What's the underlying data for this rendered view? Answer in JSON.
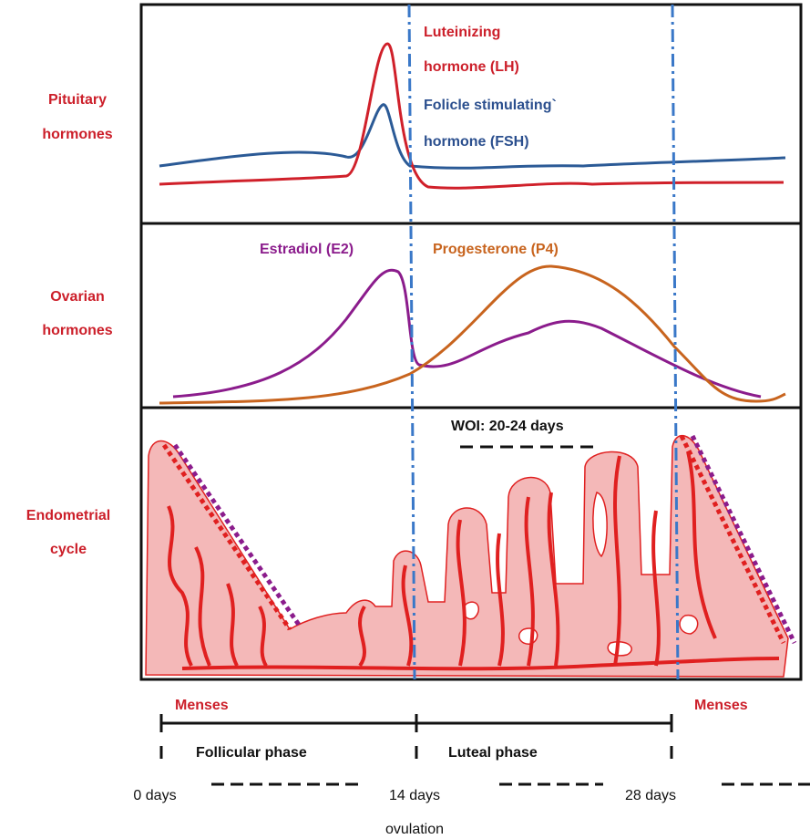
{
  "row_labels": [
    [
      "Pituitary",
      "hormones"
    ],
    [
      "Ovarian",
      "hormones"
    ],
    [
      "Endometrial",
      "cycle"
    ]
  ],
  "pituitary_panel": {
    "lh_label": [
      "Luteinizing",
      "hormone (LH)"
    ],
    "fsh_label": [
      "Folicle stimulating`",
      "hormone (FSH)"
    ]
  },
  "ovarian_panel": {
    "estradiol_label": "Estradiol (E2)",
    "progesterone_label": "Progesterone (P4)"
  },
  "endometrial_panel": {
    "woi_label": "WOI: 20-24 days"
  },
  "menses_labels": [
    "Menses",
    "Menses"
  ],
  "phases": [
    "Follicular phase",
    "Luteal phase"
  ],
  "day_labels": [
    "0 days",
    "14 days",
    "28 days"
  ],
  "ovulation_label": "ovulation"
}
